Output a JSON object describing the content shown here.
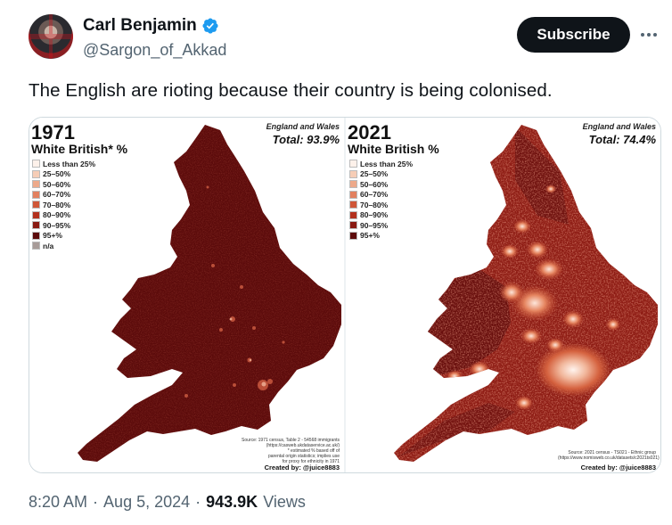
{
  "author": {
    "display_name": "Carl Benjamin",
    "handle": "@Sargon_of_Akkad",
    "verified": true,
    "avatar_icon": "profile-photo"
  },
  "actions": {
    "subscribe_label": "Subscribe",
    "more_icon": "more-horizontal-icon"
  },
  "tweet": {
    "text": "The English are rioting because their country is being colonised."
  },
  "media": {
    "left": {
      "year": "1971",
      "subtitle": "White British* %",
      "region": "England and Wales",
      "total": "Total: 93.9%",
      "legend": [
        "Less than 25%",
        "25–50%",
        "50–60%",
        "60–70%",
        "70–80%",
        "80–90%",
        "90–95%",
        "95+%",
        "n/a"
      ],
      "legend_colors": [
        "#fdf1ea",
        "#f6cdb6",
        "#eda98a",
        "#e2805f",
        "#cf5637",
        "#b3301d",
        "#8a1a12",
        "#5c0b0b",
        "#a89b98"
      ],
      "source_lines": [
        "Source: 1971 census, Table 2 - 54568 immigrants",
        "(https://casweb.ukdataservice.ac.uk/)",
        "* estimated % based off of",
        "parental origin statistics; implies use",
        "for proxy for ethnicity in 1971"
      ],
      "created_by": "Created by: @juice8883"
    },
    "right": {
      "year": "2021",
      "subtitle": "White British %",
      "region": "England and Wales",
      "total": "Total: 74.4%",
      "legend": [
        "Less than 25%",
        "25–50%",
        "50–60%",
        "60–70%",
        "70–80%",
        "80–90%",
        "90–95%",
        "95+%"
      ],
      "legend_colors": [
        "#fdf1ea",
        "#f6cdb6",
        "#eda98a",
        "#e2805f",
        "#cf5637",
        "#b3301d",
        "#8a1a12",
        "#5c0b0b"
      ],
      "source_lines": [
        "Source: 2021 census - TS021 - Ethnic group",
        "(https://www.nomisweb.co.uk/datasets/c2021ts021)"
      ],
      "created_by": "Created by: @juice8883"
    }
  },
  "meta": {
    "time": "8:20 AM",
    "date": "Aug 5, 2024",
    "views_count": "943.9K",
    "views_label": "Views"
  }
}
